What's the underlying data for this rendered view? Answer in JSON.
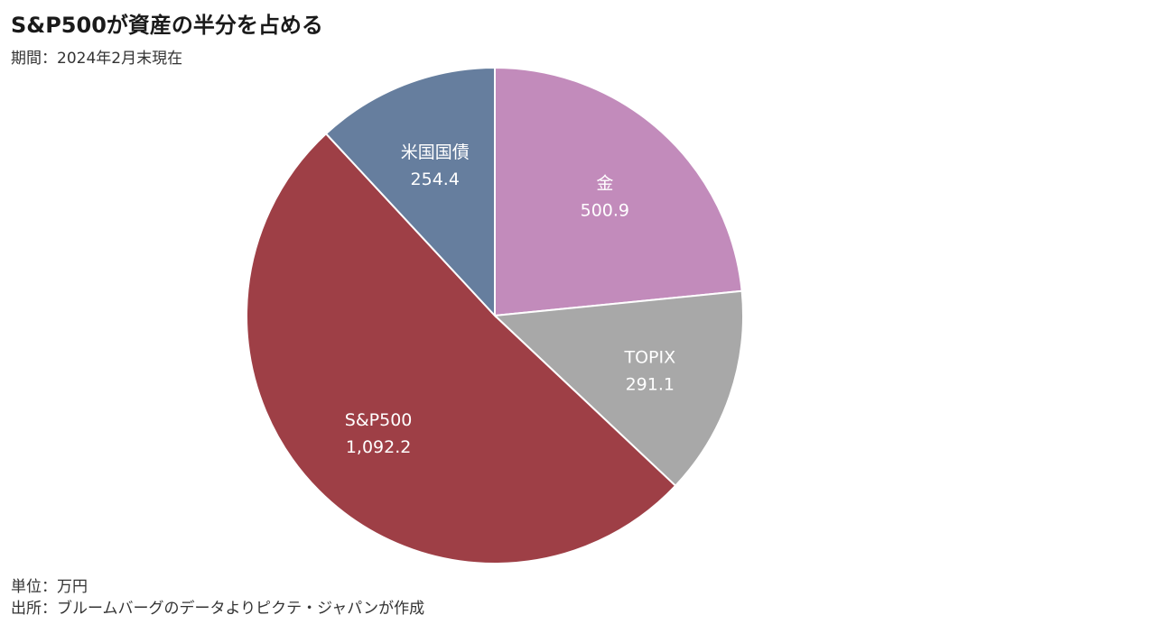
{
  "title": "S&P500が資産の半分を占める",
  "subtitle": "期間：2024年2月末現在",
  "unit_note": "単位：万円",
  "source_note": "出所：ブルームバーグのデータよりピクテ・ジャパンが作成",
  "chart_data": {
    "type": "pie",
    "title": "S&P500が資産の半分を占める",
    "subtitle": "期間：2024年2月末現在",
    "unit": "万円",
    "start_angle_deg": 0,
    "direction": "clockwise",
    "slices": [
      {
        "label": "金",
        "value": 500.9,
        "value_label": "500.9",
        "color": "#c28bbb"
      },
      {
        "label": "TOPIX",
        "value": 291.1,
        "value_label": "291.1",
        "color": "#a8a8a8"
      },
      {
        "label": "S&P500",
        "value": 1092.2,
        "value_label": "1,092.2",
        "color": "#9e3f46"
      },
      {
        "label": "米国国債",
        "value": 254.4,
        "value_label": "254.4",
        "color": "#667e9e"
      }
    ]
  }
}
